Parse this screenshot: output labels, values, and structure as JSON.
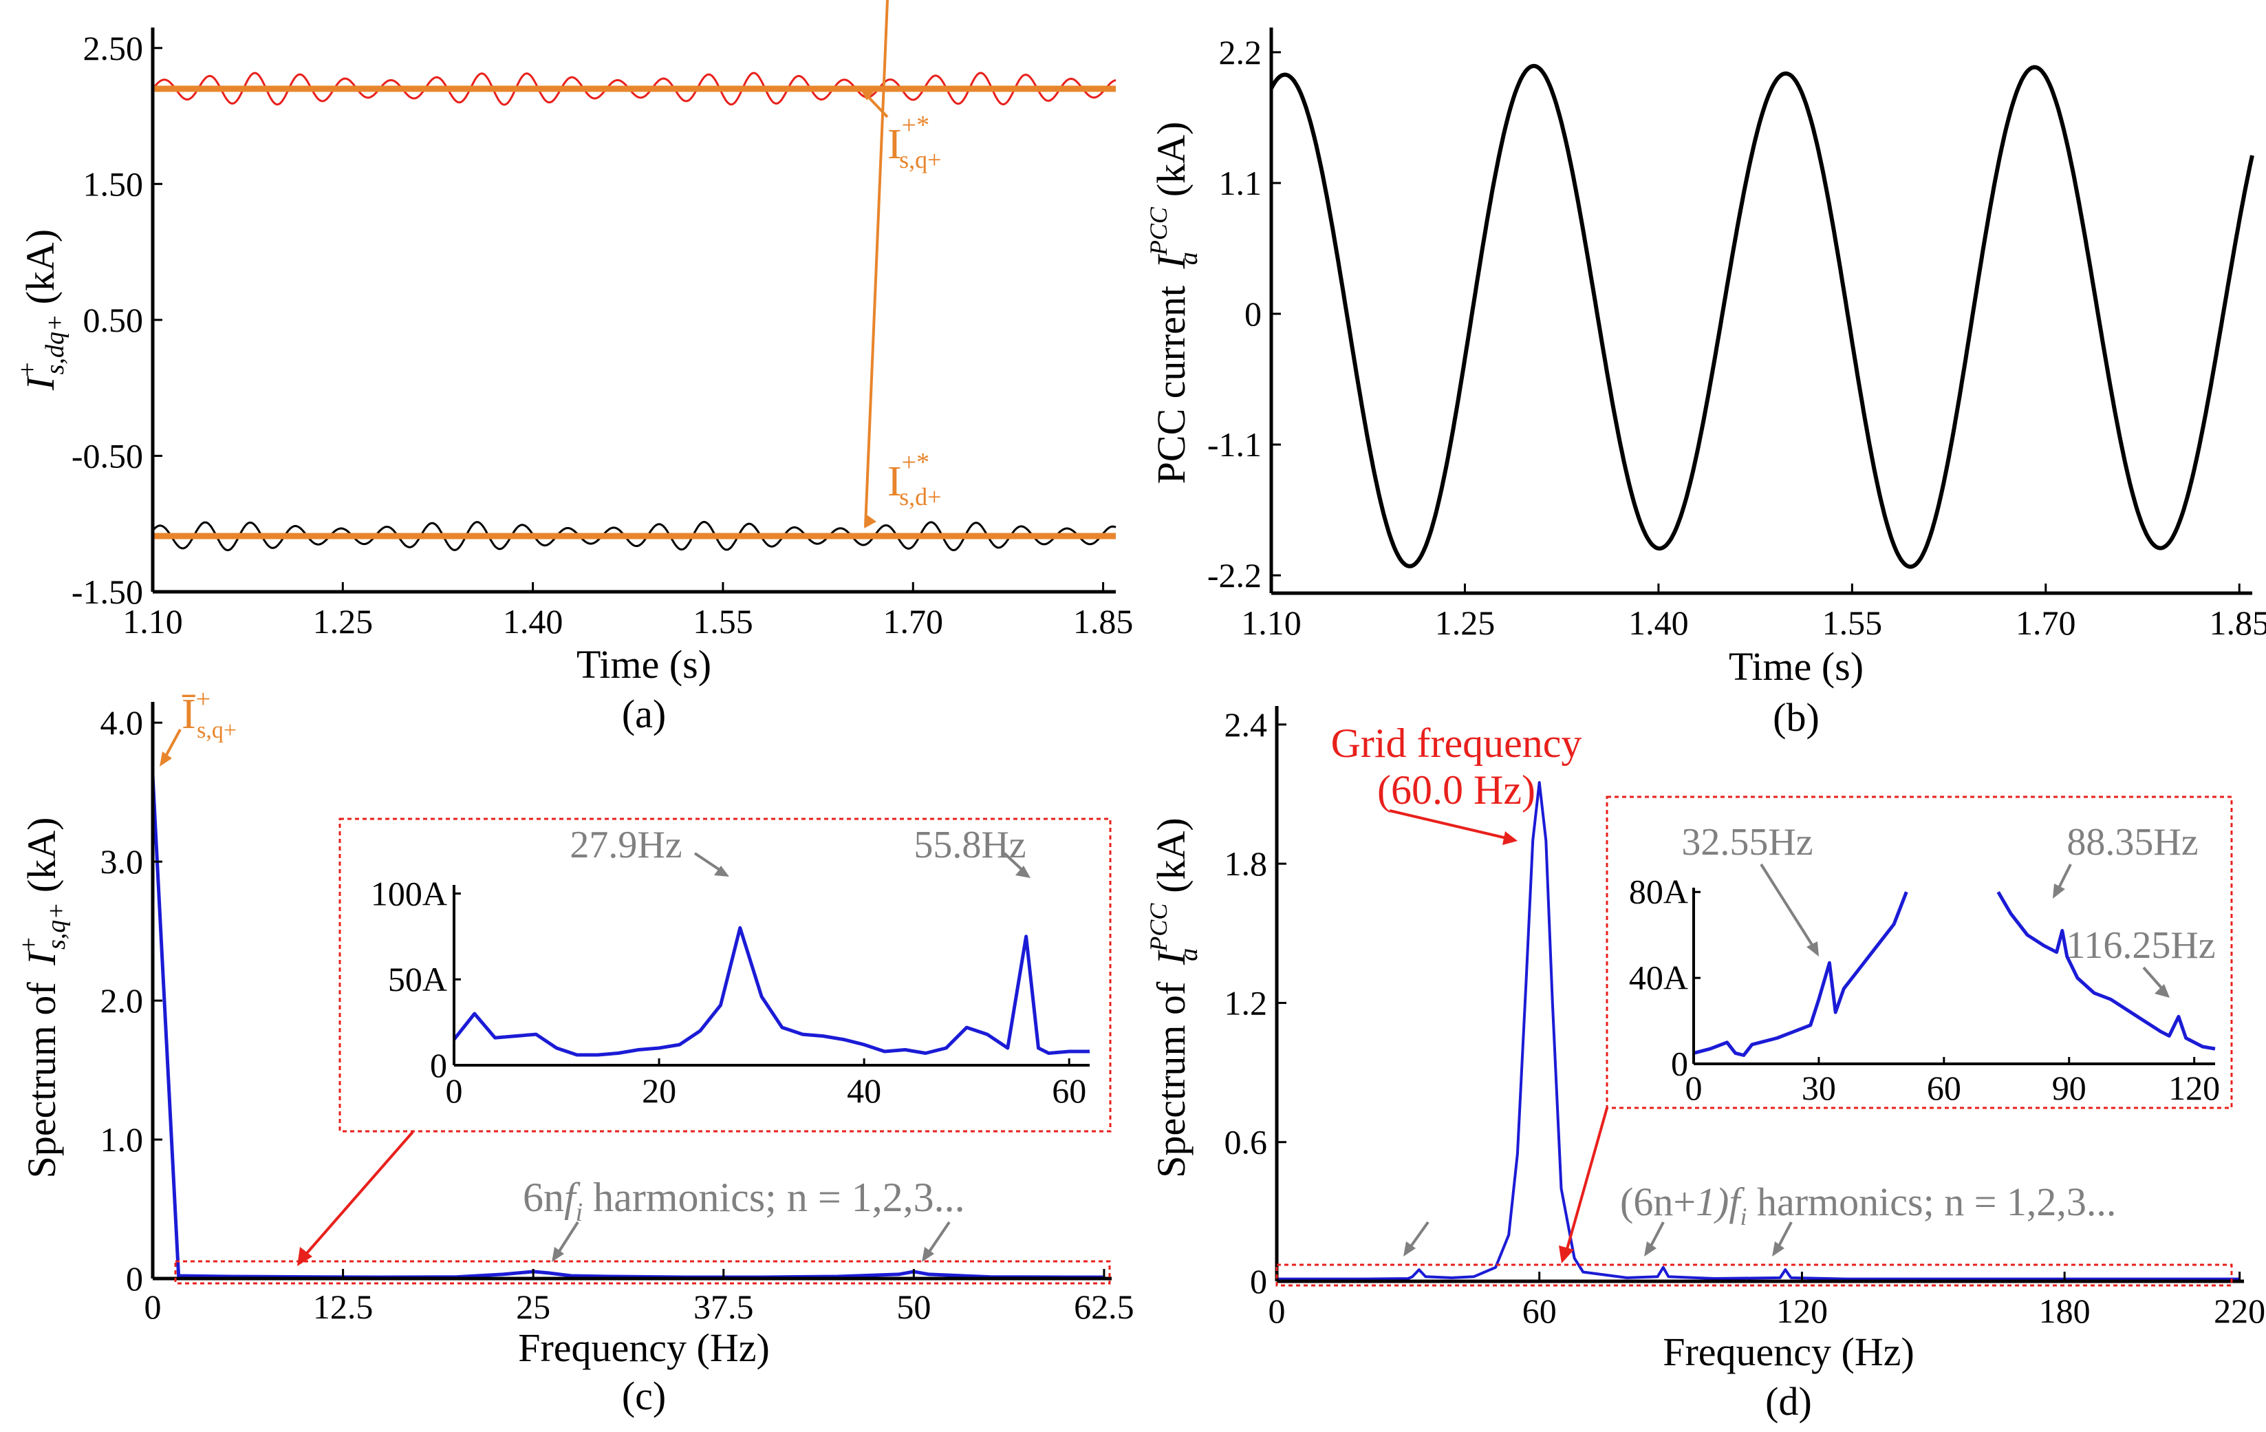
{
  "colors": {
    "orange": "#e8852c",
    "red": "#e8201c",
    "blue": "#1b1bd6",
    "gray": "#808080",
    "black": "#000000"
  },
  "chart_data": [
    {
      "id": "a",
      "type": "line",
      "caption": "(a)",
      "xlabel": "Time (s)",
      "ylabel_main": "I",
      "ylabel_sup": "+",
      "ylabel_sub": "s,dq+",
      "ylabel_unit": "(kA)",
      "xlim": [
        1.1,
        1.86
      ],
      "ylim": [
        -1.5,
        2.6
      ],
      "x_ticks": [
        "1.10",
        "1.25",
        "1.40",
        "1.55",
        "1.70",
        "1.85"
      ],
      "x_tick_values": [
        1.1,
        1.25,
        1.4,
        1.55,
        1.7,
        1.85
      ],
      "y_ticks": [
        "2.50",
        "1.50",
        "0.50",
        "-0.50",
        "-1.50"
      ],
      "y_tick_values": [
        2.5,
        1.5,
        0.5,
        -0.5,
        -1.5
      ],
      "series": [
        {
          "name": "I+ s,q+",
          "color": "#e8201c",
          "mean": 2.2,
          "amplitude": 0.09,
          "period_s": 0.0358
        },
        {
          "name": "I+* s,q+",
          "color": "#e8852c",
          "value": 2.2
        },
        {
          "name": "I+ s,d+",
          "color": "#000000",
          "mean": -1.09,
          "amplitude": 0.08,
          "period_s": 0.0358
        },
        {
          "name": "I+* s,d+",
          "color": "#e8852c",
          "value": -1.09
        }
      ],
      "annotations": [
        {
          "main": "I",
          "sup": "+*",
          "sub": "s,q+"
        },
        {
          "main": "I",
          "sup": "+*",
          "sub": "s,d+"
        }
      ]
    },
    {
      "id": "b",
      "type": "line",
      "caption": "(b)",
      "xlabel": "Time (s)",
      "ylabel_prefix": "PCC current",
      "ylabel_main": "I",
      "ylabel_sup": "PCC",
      "ylabel_sub": "a",
      "ylabel_unit": "(kA)",
      "xlim": [
        1.1,
        1.86
      ],
      "ylim": [
        -2.35,
        2.35
      ],
      "x_ticks": [
        "1.10",
        "1.25",
        "1.40",
        "1.55",
        "1.70",
        "1.85"
      ],
      "x_tick_values": [
        1.1,
        1.25,
        1.4,
        1.55,
        1.7,
        1.85
      ],
      "y_ticks": [
        "2.2",
        "1.1",
        "0",
        "-1.1",
        "-2.2"
      ],
      "y_tick_values": [
        2.2,
        1.1,
        0,
        -1.1,
        -2.2
      ],
      "series": [
        {
          "name": "Ia PCC",
          "color": "#000000",
          "amplitude": 2.05,
          "period_s": 0.194,
          "phase_ref_s": 1.11
        }
      ]
    },
    {
      "id": "c",
      "type": "line",
      "caption": "(c)",
      "xlabel": "Frequency (Hz)",
      "ylabel_prefix": "Spectrum of",
      "ylabel_main": "I",
      "ylabel_sup": "+",
      "ylabel_sub": "s,q+",
      "ylabel_unit": "(kA)",
      "xlim": [
        0,
        63
      ],
      "ylim": [
        0,
        4.1
      ],
      "x_ticks": [
        "0",
        "12.5",
        "25",
        "37.5",
        "50",
        "62.5"
      ],
      "x_tick_values": [
        0,
        12.5,
        25,
        37.5,
        50,
        62.5
      ],
      "y_ticks": [
        "4.0",
        "3.0",
        "2.0",
        "1.0",
        "0"
      ],
      "y_tick_values": [
        4.0,
        3.0,
        2.0,
        1.0,
        0
      ],
      "series": [
        {
          "name": "spectrum",
          "color": "#1b1bd6",
          "x": [
            0,
            1.7,
            5,
            10,
            15,
            20,
            23,
            25,
            26,
            27.5,
            30,
            35,
            40,
            45,
            49,
            50,
            51,
            55,
            60,
            62.5
          ],
          "y": [
            3.62,
            0.02,
            0.015,
            0.012,
            0.01,
            0.012,
            0.03,
            0.05,
            0.04,
            0.02,
            0.015,
            0.01,
            0.01,
            0.015,
            0.03,
            0.05,
            0.03,
            0.012,
            0.01,
            0.01
          ]
        }
      ],
      "annotations": [
        {
          "main": "Ī",
          "sup": "+",
          "sub": "s,q+"
        },
        {
          "text_a": "6n",
          "text_f": "f",
          "text_i": "i",
          "text_b": " harmonics; n = 1,2,3..."
        }
      ],
      "inset": {
        "xlim": [
          0,
          62
        ],
        "ylim": [
          0,
          105
        ],
        "x_ticks": [
          "0",
          "20",
          "40",
          "60"
        ],
        "x_tick_values": [
          0,
          20,
          40,
          60
        ],
        "y_ticks": [
          "100A",
          "50A",
          "0"
        ],
        "y_tick_values": [
          100,
          50,
          0
        ],
        "peak_labels": [
          "27.9Hz",
          "55.8Hz"
        ],
        "x": [
          0,
          2,
          4,
          6,
          8,
          10,
          12,
          14,
          16,
          18,
          20,
          22,
          24,
          26,
          27.9,
          30,
          32,
          34,
          36,
          38,
          40,
          42,
          44,
          46,
          48,
          50,
          52,
          54,
          55.8,
          57,
          58,
          60,
          62
        ],
        "y": [
          15,
          30,
          16,
          17,
          18,
          10,
          6,
          6,
          7,
          9,
          10,
          12,
          20,
          35,
          80,
          40,
          22,
          18,
          17,
          15,
          12,
          8,
          9,
          7,
          10,
          22,
          18,
          10,
          75,
          10,
          7,
          8,
          8
        ]
      }
    },
    {
      "id": "d",
      "type": "line",
      "caption": "(d)",
      "xlabel": "Frequency (Hz)",
      "ylabel_prefix": "Spectrum of",
      "ylabel_main": "I",
      "ylabel_sup": "PCC",
      "ylabel_sub": "a",
      "ylabel_unit": "(kA)",
      "xlim": [
        0,
        221
      ],
      "ylim": [
        0,
        2.45
      ],
      "x_ticks": [
        "0",
        "60",
        "120",
        "180",
        "220"
      ],
      "x_tick_values": [
        0,
        60,
        120,
        180,
        220
      ],
      "y_ticks": [
        "2.4",
        "1.8",
        "1.2",
        "0.6",
        "0"
      ],
      "y_tick_values": [
        2.4,
        1.8,
        1.2,
        0.6,
        0
      ],
      "series": [
        {
          "name": "spectrum",
          "color": "#1b1bd6",
          "x": [
            0,
            10,
            20,
            30,
            31,
            32.5,
            34,
            40,
            45,
            50,
            53,
            55,
            57,
            58.5,
            60,
            61.5,
            63,
            65,
            68,
            70,
            80,
            87,
            88.3,
            89.5,
            100,
            115,
            116.2,
            117.5,
            130,
            150,
            180,
            200,
            220
          ],
          "y": [
            0.01,
            0.01,
            0.01,
            0.012,
            0.02,
            0.05,
            0.02,
            0.015,
            0.02,
            0.06,
            0.2,
            0.55,
            1.3,
            1.9,
            2.15,
            1.9,
            1.2,
            0.4,
            0.1,
            0.04,
            0.015,
            0.02,
            0.06,
            0.02,
            0.012,
            0.015,
            0.05,
            0.015,
            0.01,
            0.01,
            0.01,
            0.01,
            0.01
          ]
        }
      ],
      "annotations": [
        {
          "line1": "Grid frequency",
          "line2": "(60.0 Hz)"
        },
        {
          "text_a": "(6n+",
          "text_one": "1)",
          "text_f": "f",
          "text_i": "i",
          "text_b": " harmonics; n = 1,2,3..."
        }
      ],
      "inset": {
        "xlim": [
          0,
          125
        ],
        "ylim": [
          0,
          82
        ],
        "x_ticks": [
          "0",
          "30",
          "60",
          "90",
          "120"
        ],
        "x_tick_values": [
          0,
          30,
          60,
          90,
          120
        ],
        "y_ticks": [
          "80A",
          "40A",
          "0"
        ],
        "y_tick_values": [
          80,
          40,
          0
        ],
        "peak_labels": [
          "32.55Hz",
          "88.35Hz",
          "116.25Hz"
        ],
        "x_left": [
          0,
          4,
          8,
          10,
          12,
          14,
          16,
          20,
          24,
          28,
          30,
          32.55,
          34,
          36,
          40,
          44,
          48,
          51
        ],
        "y_left": [
          5,
          7,
          10,
          5,
          4,
          9,
          10,
          12,
          15,
          18,
          30,
          47,
          24,
          35,
          45,
          55,
          65,
          80
        ],
        "x_right": [
          73,
          76,
          80,
          84,
          87,
          88.35,
          89.5,
          92,
          96,
          100,
          104,
          108,
          112,
          114,
          116.25,
          118,
          122,
          125
        ],
        "y_right": [
          80,
          70,
          60,
          55,
          52,
          62,
          50,
          40,
          33,
          30,
          25,
          20,
          15,
          13,
          22,
          12,
          8,
          7
        ]
      }
    }
  ]
}
